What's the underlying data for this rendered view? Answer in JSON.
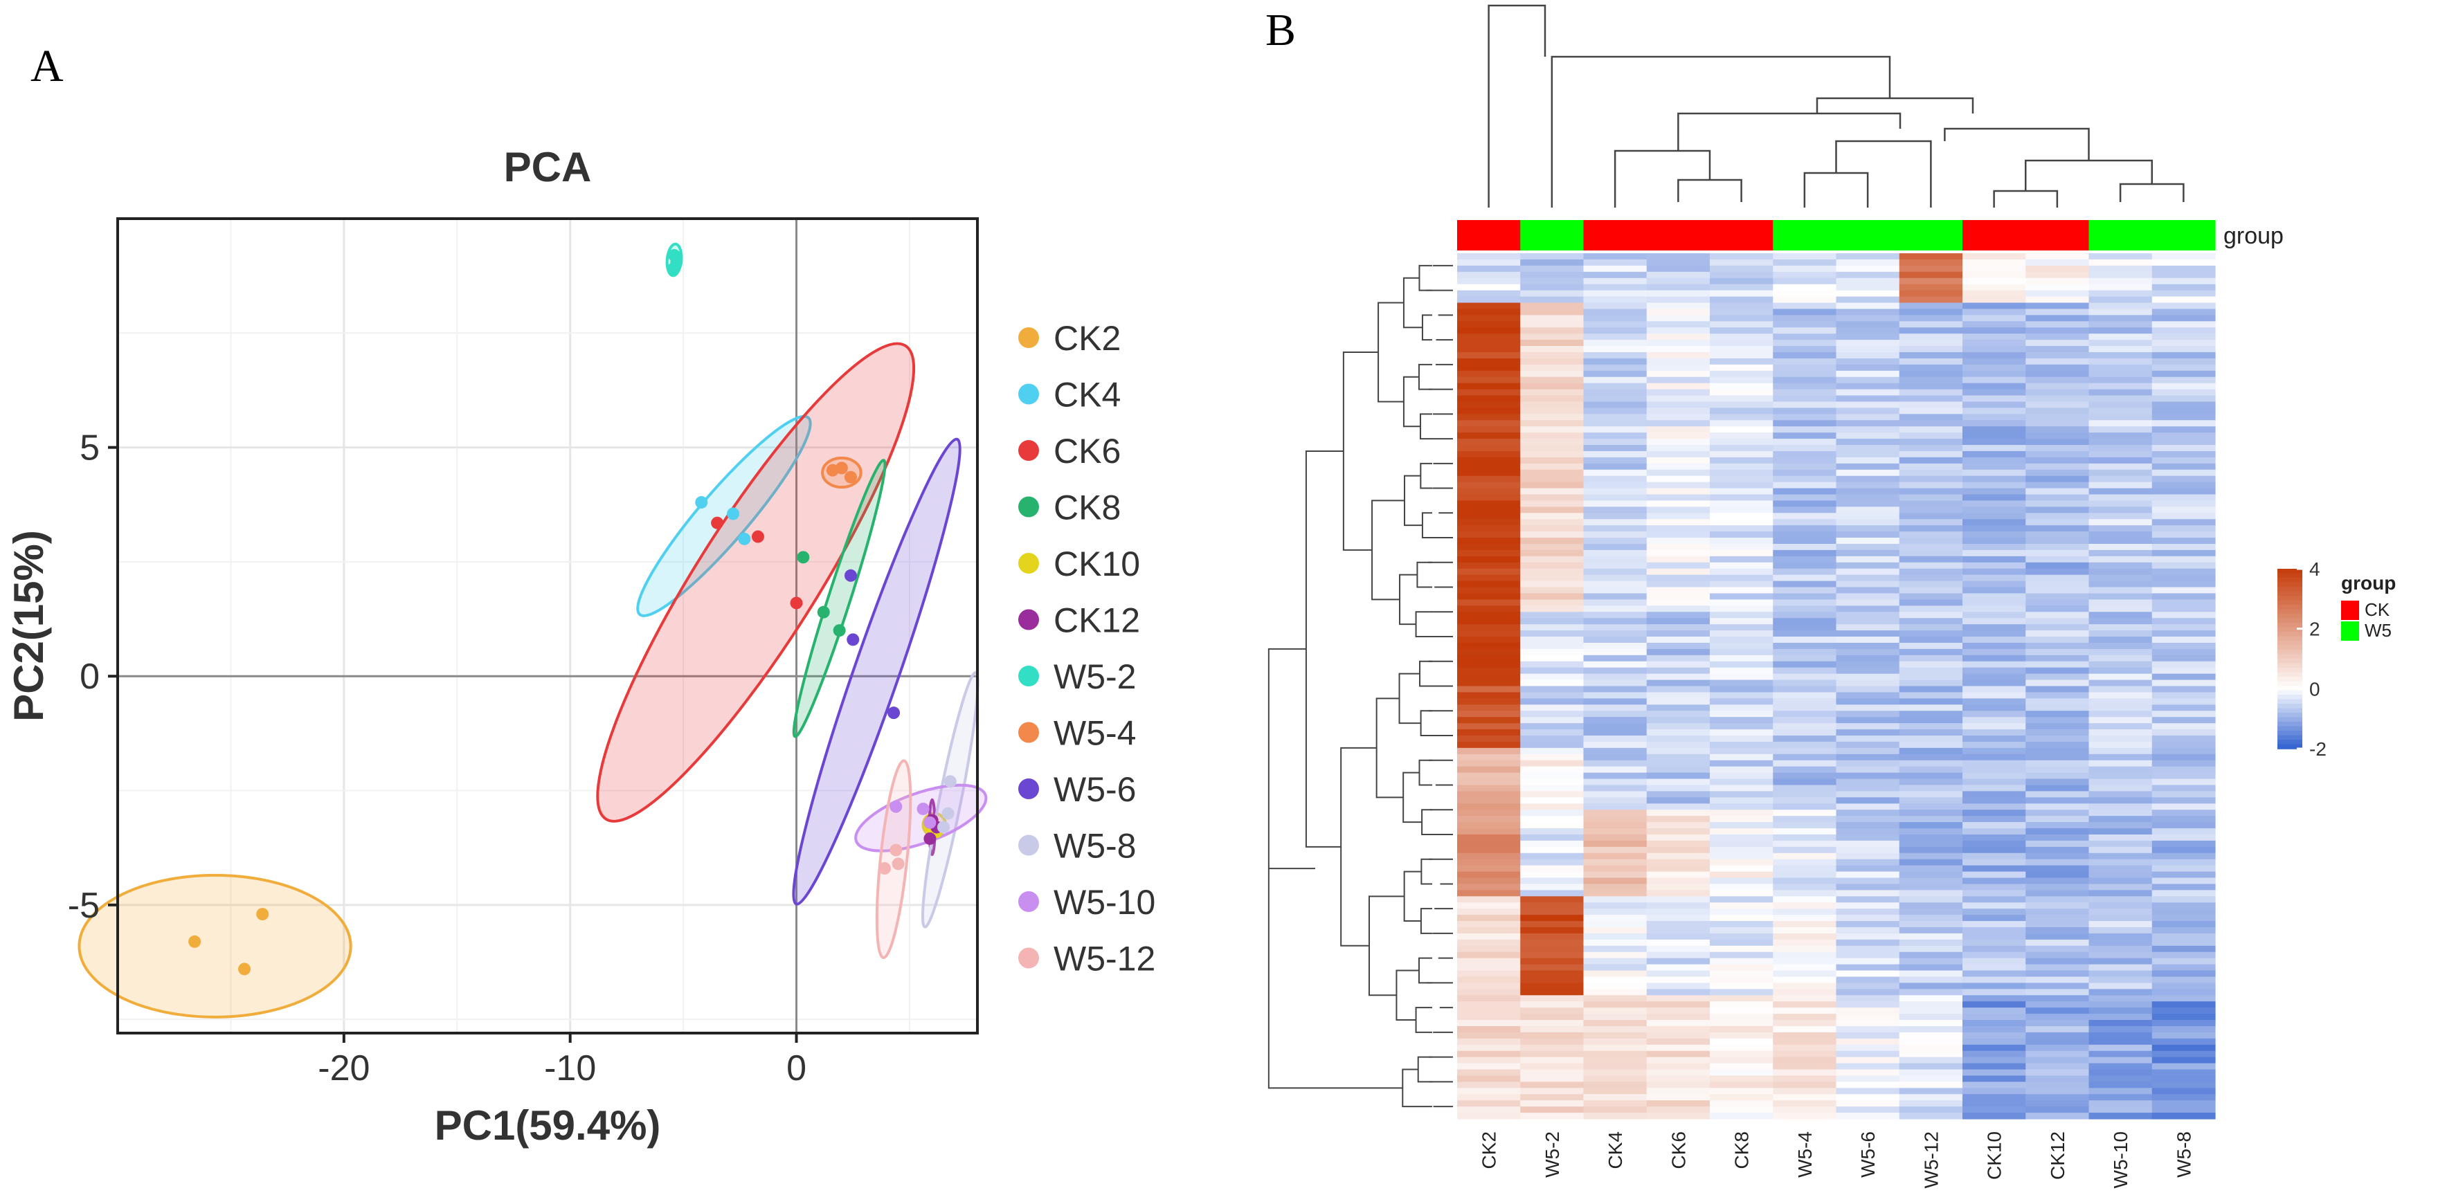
{
  "panel_labels": {
    "a": "A",
    "b": "B"
  },
  "chart_data": [
    {
      "type": "scatter",
      "title": "PCA",
      "xlabel": "PC1(59.4%)",
      "ylabel": "PC2(15%)",
      "xlim": [
        -30,
        8
      ],
      "ylim": [
        -7.8,
        10
      ],
      "xticks": [
        -20,
        -10,
        0
      ],
      "yticks": [
        -5,
        0,
        5
      ],
      "grid": true,
      "legend_position": "right",
      "series": [
        {
          "name": "CK2",
          "color": "#f0ad3c",
          "points": [
            [
              -26.6,
              -5.8
            ],
            [
              -24.4,
              -6.4
            ],
            [
              -23.6,
              -5.2
            ]
          ],
          "ellipse": {
            "center": [
              -25.7,
              -5.9
            ],
            "rx": 6.0,
            "ry": 1.55,
            "angle": 0
          }
        },
        {
          "name": "CK4",
          "color": "#4fd0f0",
          "points": [
            [
              -4.2,
              3.8
            ],
            [
              -2.8,
              3.55
            ],
            [
              -2.3,
              3.0
            ]
          ],
          "ellipse": {
            "center": [
              -3.2,
              3.5
            ],
            "rx": 4.3,
            "ry": 0.6,
            "angle": 30
          }
        },
        {
          "name": "CK6",
          "color": "#e83a3a",
          "points": [
            [
              -3.5,
              3.35
            ],
            [
              -1.7,
              3.05
            ],
            [
              0.0,
              1.6
            ]
          ],
          "ellipse": {
            "center": [
              -1.8,
              2.05
            ],
            "rx": 8.4,
            "ry": 1.55,
            "angle": 38
          }
        },
        {
          "name": "CK8",
          "color": "#27b36e",
          "points": [
            [
              0.3,
              2.6
            ],
            [
              1.2,
              1.4
            ],
            [
              1.9,
              1.0
            ]
          ],
          "ellipse": {
            "center": [
              1.9,
              1.7
            ],
            "rx": 3.6,
            "ry": 0.35,
            "angle": 57
          }
        },
        {
          "name": "CK10",
          "color": "#e4d41c",
          "points": [
            [
              5.9,
              -3.3
            ],
            [
              6.0,
              -3.2
            ],
            [
              6.2,
              -3.4
            ]
          ],
          "ellipse": {
            "center": [
              6.1,
              -3.25
            ],
            "rx": 0.5,
            "ry": 0.25,
            "angle": 0
          }
        },
        {
          "name": "CK12",
          "color": "#9b2c9b",
          "points": [
            [
              6.0,
              -3.15
            ],
            [
              5.9,
              -3.55
            ],
            [
              6.2,
              -3.3
            ]
          ],
          "ellipse": {
            "center": [
              6.0,
              -3.3
            ],
            "rx": 0.6,
            "ry": 0.1,
            "angle": 90
          }
        },
        {
          "name": "W5-2",
          "color": "#33dfc4",
          "points": [
            [
              -5.4,
              9.2
            ],
            [
              -5.3,
              9.05
            ],
            [
              -5.45,
              8.9
            ]
          ],
          "ellipse": {
            "center": [
              -5.4,
              9.1
            ],
            "rx": 0.35,
            "ry": 0.3,
            "angle": 80
          }
        },
        {
          "name": "W5-4",
          "color": "#f2884a",
          "points": [
            [
              1.6,
              4.5
            ],
            [
              2.0,
              4.55
            ],
            [
              2.4,
              4.35
            ]
          ],
          "ellipse": {
            "center": [
              2.0,
              4.45
            ],
            "rx": 0.85,
            "ry": 0.32,
            "angle": 0
          }
        },
        {
          "name": "W5-6",
          "color": "#6a46d3",
          "points": [
            [
              2.4,
              2.2
            ],
            [
              2.5,
              0.8
            ],
            [
              4.3,
              -0.8
            ]
          ],
          "ellipse": {
            "center": [
              3.55,
              0.1
            ],
            "rx": 6.2,
            "ry": 0.7,
            "angle": 55
          }
        },
        {
          "name": "W5-8",
          "color": "#c9c9e8",
          "points": [
            [
              6.5,
              -3.3
            ],
            [
              6.8,
              -2.3
            ],
            [
              6.7,
              -3.0
            ]
          ],
          "ellipse": {
            "center": [
              6.8,
              -2.7
            ],
            "rx": 3.0,
            "ry": 0.4,
            "angle": 68
          }
        },
        {
          "name": "W5-10",
          "color": "#c88ef0",
          "points": [
            [
              4.4,
              -2.85
            ],
            [
              5.6,
              -2.9
            ],
            [
              5.9,
              -3.2
            ]
          ],
          "ellipse": {
            "center": [
              5.5,
              -3.1
            ],
            "rx": 2.9,
            "ry": 0.55,
            "angle": 10
          }
        },
        {
          "name": "W5-12",
          "color": "#f5b4b4",
          "points": [
            [
              4.4,
              -3.8
            ],
            [
              3.9,
              -4.2
            ],
            [
              4.5,
              -4.1
            ]
          ],
          "ellipse": {
            "center": [
              4.3,
              -4.0
            ],
            "rx": 2.2,
            "ry": 0.55,
            "angle": 78
          }
        }
      ]
    },
    {
      "type": "heatmap",
      "samples": [
        "CK2",
        "W5-2",
        "CK4",
        "CK6",
        "CK8",
        "W5-4",
        "W5-6",
        "W5-12",
        "CK10",
        "CK12",
        "W5-10",
        "W5-8"
      ],
      "groups": [
        "CK",
        "W5",
        "CK",
        "CK",
        "CK",
        "W5",
        "W5",
        "W5",
        "CK",
        "CK",
        "W5",
        "W5"
      ],
      "annotation_label": "group",
      "group_legend": {
        "title": "group",
        "items": [
          {
            "label": "CK",
            "color": "#ff0000"
          },
          {
            "label": "W5",
            "color": "#00ff00"
          }
        ]
      },
      "color_scale": {
        "min": -2,
        "max": 4,
        "ticks": [
          4,
          2,
          0,
          -2
        ],
        "low": "#2f5fcf",
        "mid": "#ffffff",
        "high": "#c43a08"
      },
      "row_count": 140,
      "row_blocks": [
        {
          "rows": 8,
          "values": [
            -0.4,
            -0.6,
            -0.5,
            -0.6,
            -0.5,
            -0.3,
            -0.2,
            2.8,
            0.4,
            0.2,
            -0.3,
            -0.4
          ]
        },
        {
          "rows": 50,
          "values": [
            3.8,
            0.8,
            -0.5,
            -0.1,
            -0.3,
            -0.7,
            -0.5,
            -0.7,
            -0.8,
            -0.8,
            -0.6,
            -0.6
          ]
        },
        {
          "rows": 12,
          "values": [
            3.9,
            -0.4,
            -0.5,
            -0.6,
            -0.4,
            -0.7,
            -0.6,
            -0.7,
            -0.8,
            -0.7,
            -0.6,
            -0.6
          ]
        },
        {
          "rows": 10,
          "values": [
            3.4,
            -0.5,
            -0.6,
            -0.6,
            -0.5,
            -0.6,
            -0.7,
            -0.7,
            -0.7,
            -0.7,
            -0.6,
            -0.6
          ]
        },
        {
          "rows": 10,
          "values": [
            1.6,
            0.3,
            -0.6,
            -0.6,
            -0.6,
            -0.7,
            -0.7,
            -0.8,
            -0.8,
            -0.8,
            -0.7,
            -0.7
          ]
        },
        {
          "rows": 14,
          "values": [
            2.2,
            -0.3,
            1.3,
            0.6,
            0.1,
            -0.2,
            -0.5,
            -0.8,
            -0.9,
            -0.9,
            -0.8,
            -0.8
          ]
        },
        {
          "rows": 16,
          "values": [
            0.6,
            3.6,
            -0.1,
            -0.3,
            -0.2,
            0.1,
            -0.4,
            -0.6,
            -0.8,
            -0.7,
            -0.7,
            -0.8
          ]
        },
        {
          "rows": 20,
          "values": [
            0.7,
            0.7,
            0.6,
            0.6,
            0.3,
            0.5,
            -0.1,
            -0.3,
            -1.2,
            -1.0,
            -1.1,
            -1.3
          ]
        }
      ]
    }
  ]
}
